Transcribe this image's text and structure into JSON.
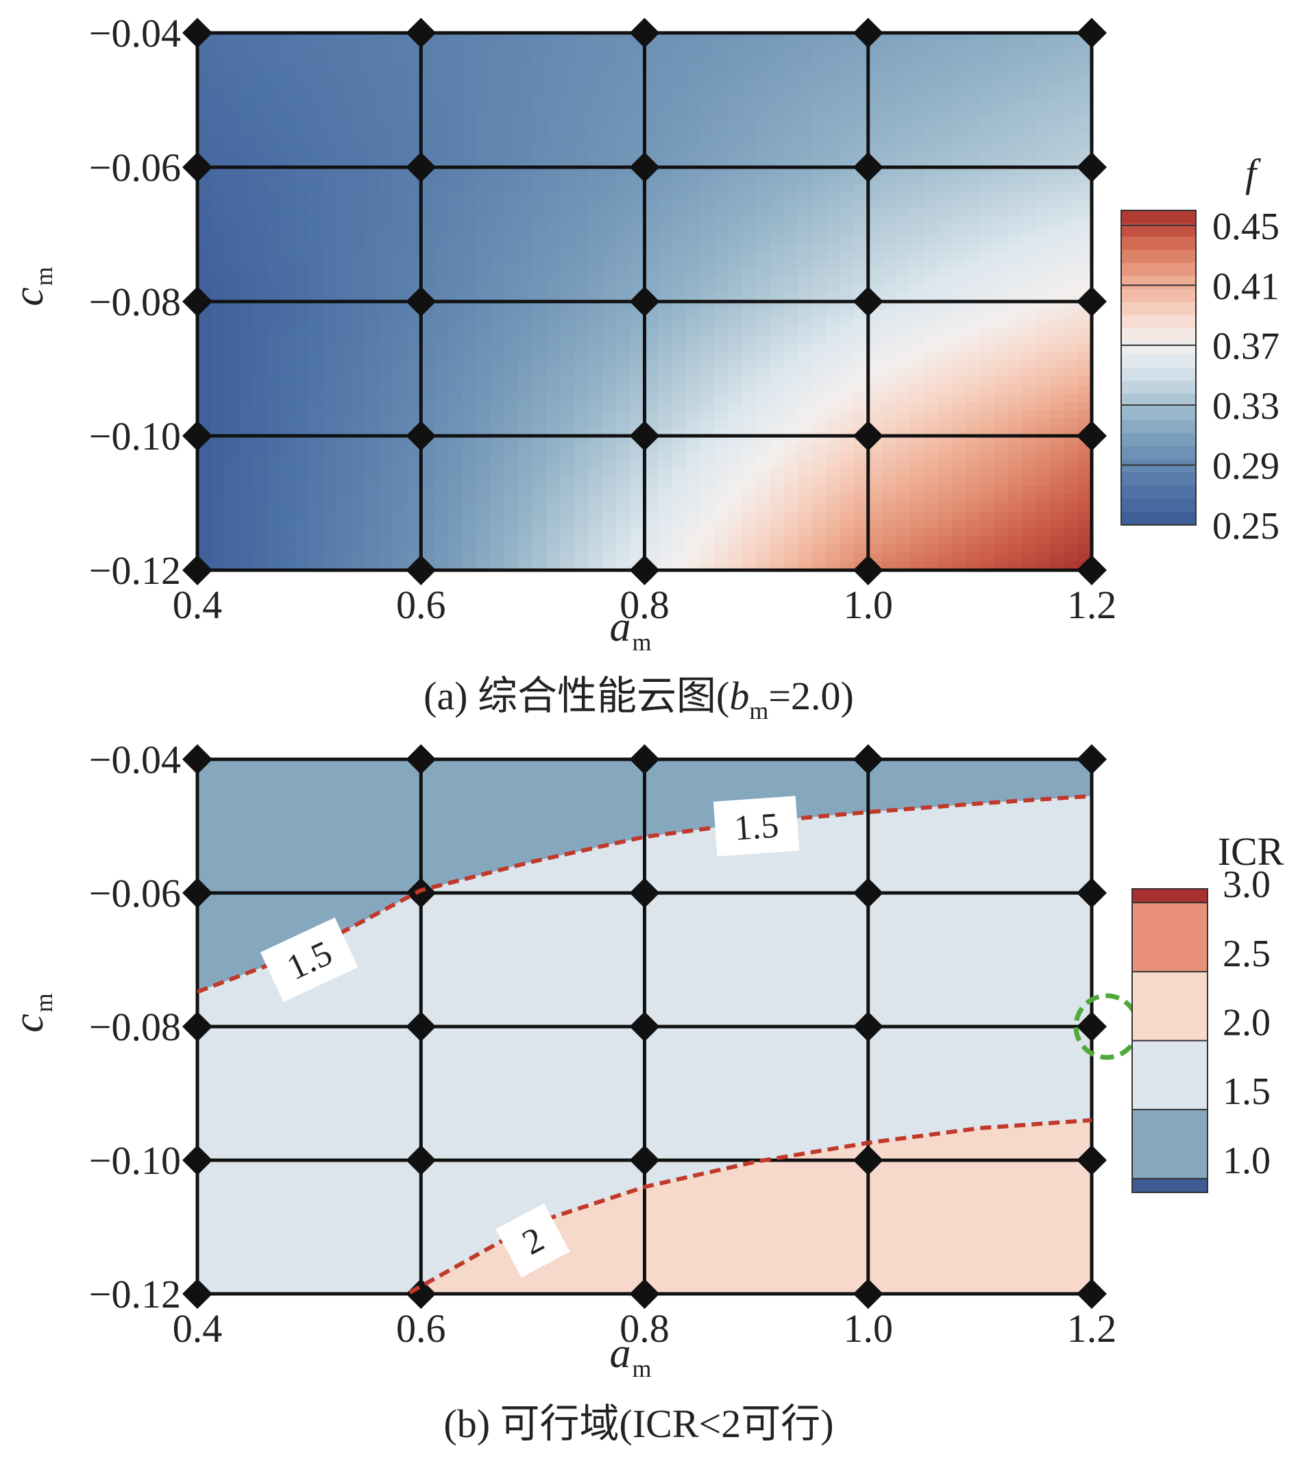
{
  "chart_data": [
    {
      "type": "heatmap",
      "panel": "a",
      "caption": {
        "prefix": "(a) 综合性能云图(",
        "var": "b",
        "sub": "m",
        "suffix": "=2.0)"
      },
      "xlabel": {
        "var": "a",
        "sub": "m"
      },
      "ylabel": {
        "var": "c",
        "sub": "m"
      },
      "x_ticks": [
        "0.4",
        "0.6",
        "0.8",
        "1.0",
        "1.2"
      ],
      "y_ticks": [
        "−0.04",
        "−0.06",
        "−0.08",
        "−0.10",
        "−0.12"
      ],
      "xlim": [
        0.4,
        1.2
      ],
      "ylim": [
        -0.12,
        -0.04
      ],
      "grid_x": [
        0.4,
        0.6,
        0.8,
        1.0,
        1.2
      ],
      "grid_y": [
        -0.12,
        -0.1,
        -0.08,
        -0.06,
        -0.04
      ],
      "z_grid_rows_from_top": [
        [
          0.27,
          0.283,
          0.297,
          0.31,
          0.322
        ],
        [
          0.262,
          0.281,
          0.303,
          0.325,
          0.34
        ],
        [
          0.255,
          0.285,
          0.317,
          0.35,
          0.378
        ],
        [
          0.255,
          0.292,
          0.338,
          0.39,
          0.43
        ],
        [
          0.255,
          0.298,
          0.362,
          0.43,
          0.46
        ]
      ],
      "colorbar": {
        "label": "f",
        "range": [
          0.25,
          0.46
        ],
        "ticks": [
          "0.45",
          "0.41",
          "0.37",
          "0.33",
          "0.29",
          "0.25"
        ],
        "tick_values": [
          0.45,
          0.41,
          0.37,
          0.33,
          0.29,
          0.25
        ],
        "colors": [
          "#3b5a95",
          "#4a6ea3",
          "#5d82ad",
          "#7497b8",
          "#8fb0c6",
          "#b7cdd9",
          "#dde7ee",
          "#f3efee",
          "#f7d6c8",
          "#f0b59d",
          "#e28f73",
          "#cc5d48",
          "#a8302e"
        ]
      }
    },
    {
      "type": "heatmap",
      "panel": "b",
      "caption": "(b) 可行域(ICR<2可行)",
      "xlabel": {
        "var": "a",
        "sub": "m"
      },
      "ylabel": {
        "var": "c",
        "sub": "m"
      },
      "x_ticks": [
        "0.4",
        "0.6",
        "0.8",
        "1.0",
        "1.2"
      ],
      "y_ticks": [
        "−0.04",
        "−0.06",
        "−0.08",
        "−0.10",
        "−0.12"
      ],
      "xlim": [
        0.4,
        1.2
      ],
      "ylim": [
        -0.12,
        -0.04
      ],
      "grid_x": [
        0.4,
        0.6,
        0.8,
        1.0,
        1.2
      ],
      "grid_y": [
        -0.12,
        -0.1,
        -0.08,
        -0.06,
        -0.04
      ],
      "contours": [
        {
          "level": 1.5,
          "label": "1.5",
          "points": [
            [
              0.4,
              -0.0748
            ],
            [
              0.5,
              -0.0685
            ],
            [
              0.6,
              -0.0596
            ],
            [
              0.7,
              -0.0553
            ],
            [
              0.8,
              -0.0516
            ],
            [
              0.9,
              -0.0494
            ],
            [
              1.0,
              -0.0479
            ],
            [
              1.1,
              -0.0466
            ],
            [
              1.2,
              -0.0455
            ]
          ]
        },
        {
          "level": 2.0,
          "label": "2",
          "points": [
            [
              0.59,
              -0.1198
            ],
            [
              0.7,
              -0.1095
            ],
            [
              0.8,
              -0.104
            ],
            [
              0.9,
              -0.1002
            ],
            [
              1.0,
              -0.0974
            ],
            [
              1.1,
              -0.0952
            ],
            [
              1.2,
              -0.094
            ]
          ]
        }
      ],
      "contour_labels": [
        {
          "text": "1.5",
          "x": 0.9,
          "y": -0.05,
          "angle": -4
        },
        {
          "text": "1.5",
          "x": 0.5,
          "y": -0.07,
          "angle": -25
        },
        {
          "text": "2",
          "x": 0.7,
          "y": -0.112,
          "angle": -28
        }
      ],
      "region_colors": {
        "below_1.5": "#86a8bf",
        "1.5_to_2": "#dce5ec",
        "above_2": "#f7d9cb"
      },
      "marker": {
        "type": "dashed-circle",
        "x": 1.2,
        "y": -0.08,
        "color": "#4fa83a"
      },
      "colorbar": {
        "label": "ICR",
        "ticks": [
          "3.0",
          "2.5",
          "2.0",
          "1.5",
          "1.0"
        ],
        "bands": [
          {
            "from": 3.0,
            "to": 3.1,
            "color": "#a8302e"
          },
          {
            "from": 2.5,
            "to": 3.0,
            "color": "#e8907a"
          },
          {
            "from": 2.0,
            "to": 2.5,
            "color": "#f8dacb"
          },
          {
            "from": 1.5,
            "to": 2.0,
            "color": "#dce5ec"
          },
          {
            "from": 1.0,
            "to": 1.5,
            "color": "#86a8bf"
          },
          {
            "from": 0.9,
            "to": 1.0,
            "color": "#3e5d95"
          }
        ]
      }
    }
  ]
}
